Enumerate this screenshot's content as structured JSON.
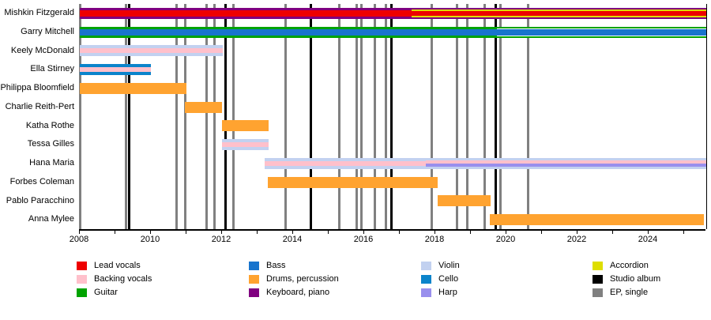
{
  "chart_data": {
    "type": "bar",
    "subtype": "band-member-timeline-gantt",
    "title": "",
    "x_axis": {
      "start": 2008,
      "end": 2025.62,
      "tick_interval": 1,
      "last_tick": 2025,
      "labels": [
        2008,
        2010,
        2012,
        2014,
        2016,
        2018,
        2020,
        2022,
        2024
      ]
    },
    "colors": {
      "lead_vocals": "#EE0000",
      "backing_vocals": "#FFC0CB",
      "guitar": "#00A300",
      "bass": "#1874CD",
      "drums": "#FFA330",
      "keyboard": "#800080",
      "violin": "#C2D1F0",
      "cello": "#0B84CB",
      "harp": "#998FED",
      "accordion": "#DEDE00",
      "studio_album": "#000000",
      "ep_single": "#808080",
      "white": "#FFFFFF"
    },
    "members": [
      {
        "name": "Mishkin Fitzgerald",
        "segments": [
          {
            "start": 2008.0,
            "end": 2017.33,
            "stripes": [
              [
                "keyboard",
                3
              ],
              [
                "lead_vocals",
                8
              ],
              [
                "keyboard",
                3
              ]
            ]
          },
          {
            "start": 2017.33,
            "end": 2025.62,
            "stripes": [
              [
                "keyboard",
                2
              ],
              [
                "accordion",
                2
              ],
              [
                "lead_vocals",
                6
              ],
              [
                "accordion",
                2
              ],
              [
                "keyboard",
                2
              ]
            ]
          }
        ]
      },
      {
        "name": "Garry Mitchell",
        "segments": [
          {
            "start": 2008.0,
            "end": 2019.73,
            "stripes": [
              [
                "guitar",
                3
              ],
              [
                "bass",
                8
              ],
              [
                "guitar",
                3
              ]
            ]
          },
          {
            "start": 2019.73,
            "end": 2025.62,
            "stripes": [
              [
                "guitar",
                2
              ],
              [
                "white",
                1
              ],
              [
                "bass",
                8
              ],
              [
                "white",
                1
              ],
              [
                "guitar",
                2
              ]
            ]
          }
        ]
      },
      {
        "name": "Keely McDonald",
        "segments": [
          {
            "start": 2008.0,
            "end": 2012.02,
            "stripes": [
              [
                "violin",
                4
              ],
              [
                "backing_vocals",
                6
              ],
              [
                "violin",
                4
              ]
            ]
          }
        ]
      },
      {
        "name": "Ella Stirney",
        "segments": [
          {
            "start": 2008.0,
            "end": 2010.0,
            "stripes": [
              [
                "cello",
                4
              ],
              [
                "backing_vocals",
                6
              ],
              [
                "cello",
                4
              ]
            ]
          }
        ]
      },
      {
        "name": "Philippa Bloomfield",
        "segments": [
          {
            "start": 2008.0,
            "end": 2011.0,
            "stripes": [
              [
                "drums",
                14
              ]
            ]
          }
        ]
      },
      {
        "name": "Charlie Reith-Pert",
        "segments": [
          {
            "start": 2010.95,
            "end": 2012.0,
            "stripes": [
              [
                "drums",
                14
              ]
            ]
          }
        ]
      },
      {
        "name": "Katha Rothe",
        "segments": [
          {
            "start": 2012.0,
            "end": 2013.3,
            "stripes": [
              [
                "drums",
                14
              ]
            ]
          }
        ]
      },
      {
        "name": "Tessa Gilles",
        "segments": [
          {
            "start": 2012.0,
            "end": 2013.3,
            "stripes": [
              [
                "violin",
                4
              ],
              [
                "backing_vocals",
                6
              ],
              [
                "violin",
                4
              ]
            ]
          }
        ]
      },
      {
        "name": "Hana Maria",
        "segments": [
          {
            "start": 2013.2,
            "end": 2017.73,
            "stripes": [
              [
                "violin",
                4
              ],
              [
                "backing_vocals",
                6
              ],
              [
                "violin",
                4
              ]
            ]
          },
          {
            "start": 2017.73,
            "end": 2025.62,
            "stripes": [
              [
                "violin",
                3
              ],
              [
                "backing_vocals",
                4
              ],
              [
                "harp",
                4
              ],
              [
                "violin",
                3
              ]
            ]
          }
        ]
      },
      {
        "name": "Forbes Coleman",
        "segments": [
          {
            "start": 2013.29,
            "end": 2018.07,
            "stripes": [
              [
                "drums",
                14
              ]
            ]
          }
        ]
      },
      {
        "name": "Pablo Paracchino",
        "segments": [
          {
            "start": 2018.07,
            "end": 2019.56,
            "stripes": [
              [
                "drums",
                14
              ]
            ]
          }
        ]
      },
      {
        "name": "Anna Mylee",
        "segments": [
          {
            "start": 2019.53,
            "end": 2025.56,
            "stripes": [
              [
                "drums",
                14
              ]
            ]
          }
        ]
      }
    ],
    "releases": [
      {
        "year": 2008.02,
        "type": "ep_single"
      },
      {
        "year": 2009.29,
        "type": "ep_single"
      },
      {
        "year": 2009.38,
        "type": "studio_album"
      },
      {
        "year": 2010.73,
        "type": "ep_single"
      },
      {
        "year": 2010.96,
        "type": "ep_single"
      },
      {
        "year": 2011.56,
        "type": "ep_single"
      },
      {
        "year": 2011.78,
        "type": "ep_single"
      },
      {
        "year": 2012.11,
        "type": "studio_album"
      },
      {
        "year": 2012.33,
        "type": "ep_single"
      },
      {
        "year": 2013.78,
        "type": "ep_single"
      },
      {
        "year": 2014.49,
        "type": "studio_album"
      },
      {
        "year": 2015.29,
        "type": "ep_single"
      },
      {
        "year": 2015.78,
        "type": "ep_single"
      },
      {
        "year": 2015.93,
        "type": "ep_single"
      },
      {
        "year": 2016.29,
        "type": "ep_single"
      },
      {
        "year": 2016.62,
        "type": "ep_single"
      },
      {
        "year": 2016.76,
        "type": "studio_album"
      },
      {
        "year": 2017.89,
        "type": "ep_single"
      },
      {
        "year": 2018.6,
        "type": "ep_single"
      },
      {
        "year": 2018.89,
        "type": "ep_single"
      },
      {
        "year": 2019.38,
        "type": "ep_single"
      },
      {
        "year": 2019.71,
        "type": "studio_album"
      },
      {
        "year": 2019.84,
        "type": "ep_single"
      },
      {
        "year": 2020.62,
        "type": "ep_single"
      }
    ],
    "legend": [
      {
        "items": [
          {
            "key": "lead_vocals",
            "label": "Lead vocals"
          },
          {
            "key": "backing_vocals",
            "label": "Backing vocals"
          },
          {
            "key": "guitar",
            "label": "Guitar"
          }
        ]
      },
      {
        "items": [
          {
            "key": "bass",
            "label": "Bass"
          },
          {
            "key": "drums",
            "label": "Drums, percussion"
          },
          {
            "key": "keyboard",
            "label": "Keyboard, piano"
          }
        ]
      },
      {
        "items": [
          {
            "key": "violin",
            "label": "Violin"
          },
          {
            "key": "cello",
            "label": "Cello"
          },
          {
            "key": "harp",
            "label": "Harp"
          }
        ]
      },
      {
        "items": [
          {
            "key": "accordion",
            "label": "Accordion"
          },
          {
            "key": "studio_album",
            "label": "Studio album"
          },
          {
            "key": "ep_single",
            "label": "EP, single"
          }
        ]
      }
    ]
  }
}
